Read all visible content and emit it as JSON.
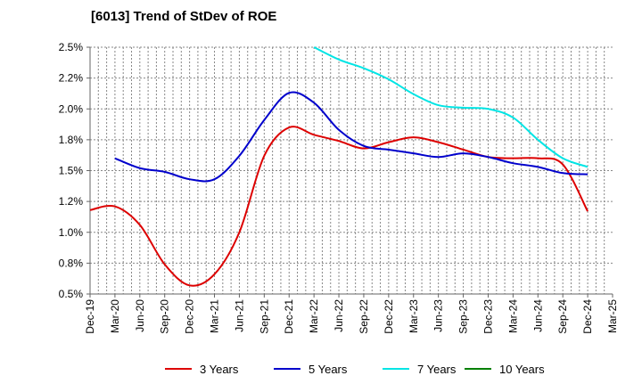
{
  "chart_data": {
    "type": "line",
    "title": "[6013]  Trend of StDev of ROE",
    "xlabel": "",
    "ylabel": "",
    "categories": [
      "Dec-19",
      "Mar-20",
      "Jun-20",
      "Sep-20",
      "Dec-20",
      "Mar-21",
      "Jun-21",
      "Sep-21",
      "Dec-21",
      "Mar-22",
      "Jun-22",
      "Sep-22",
      "Dec-22",
      "Mar-23",
      "Jun-23",
      "Sep-23",
      "Dec-23",
      "Mar-24",
      "Jun-24",
      "Sep-24",
      "Dec-24",
      "Mar-25"
    ],
    "y_tick_labels": [
      "0.5%",
      "0.8%",
      "1.0%",
      "1.2%",
      "1.5%",
      "1.8%",
      "2.0%",
      "2.2%",
      "2.5%"
    ],
    "ylim": [
      0.5,
      2.5
    ],
    "y_ticks": [
      0.5,
      0.75,
      1.0,
      1.25,
      1.5,
      1.75,
      2.0,
      2.25,
      2.5
    ],
    "grid": true,
    "legend_position": "bottom",
    "series": [
      {
        "name": "3 Years",
        "color": "#dd0000",
        "values": [
          1.18,
          1.21,
          1.06,
          0.74,
          0.57,
          0.66,
          1.0,
          1.62,
          1.85,
          1.79,
          1.74,
          1.68,
          1.73,
          1.77,
          1.73,
          1.67,
          1.61,
          1.6,
          1.6,
          1.55,
          1.17,
          null
        ]
      },
      {
        "name": "5 Years",
        "color": "#0000cc",
        "values": [
          null,
          1.6,
          1.52,
          1.49,
          1.43,
          1.43,
          1.62,
          1.91,
          2.13,
          2.05,
          1.83,
          1.7,
          1.67,
          1.64,
          1.61,
          1.64,
          1.61,
          1.56,
          1.53,
          1.48,
          1.47,
          null
        ]
      },
      {
        "name": "7 Years",
        "color": "#00e5e5",
        "values": [
          null,
          null,
          null,
          null,
          null,
          null,
          null,
          null,
          null,
          2.5,
          2.4,
          2.33,
          2.24,
          2.12,
          2.03,
          2.01,
          2.0,
          1.93,
          1.75,
          1.6,
          1.53,
          null
        ]
      },
      {
        "name": "10 Years",
        "color": "#008000",
        "values": [
          null,
          null,
          null,
          null,
          null,
          null,
          null,
          null,
          null,
          null,
          null,
          null,
          null,
          null,
          null,
          null,
          null,
          null,
          null,
          null,
          null,
          null
        ]
      }
    ]
  }
}
